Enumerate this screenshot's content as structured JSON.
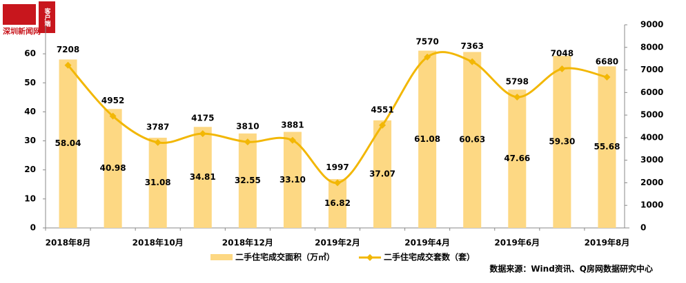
{
  "chart_data": {
    "type": "bar-line",
    "logo_text": "深圳新闻网",
    "logo_badge": "客户端",
    "source": "数据来源：Wind资讯、Q房网数据研究中心",
    "categories": [
      "2018年8月",
      null,
      "2018年10月",
      null,
      "2018年12月",
      null,
      "2019年2月",
      null,
      "2019年4月",
      null,
      "2019年6月",
      null,
      "2019年8月"
    ],
    "series": [
      {
        "name": "二手住宅成交面积（万㎡）",
        "type": "bar",
        "color": "#FDD883",
        "values": [
          58.04,
          40.98,
          31.08,
          34.81,
          32.55,
          33.1,
          16.82,
          37.07,
          61.08,
          60.63,
          47.66,
          59.3,
          55.68
        ],
        "value_labels": [
          "58.04",
          "40.98",
          "31.08",
          "34.81",
          "32.55",
          "33.10",
          "16.82",
          "37.07",
          "61.08",
          "60.63",
          "47.66",
          "59.30",
          "55.68"
        ]
      },
      {
        "name": "二手住宅成交套数（套）",
        "type": "line",
        "axis": "y2",
        "color": "#F2B705",
        "values": [
          7208,
          4952,
          3787,
          4175,
          3810,
          3881,
          1997,
          4551,
          7570,
          7363,
          5798,
          7048,
          6680
        ]
      }
    ],
    "ylim": [
      0,
      70
    ],
    "yticks": [
      0,
      10,
      20,
      30,
      40,
      50,
      60
    ],
    "y2lim": [
      0,
      9000
    ],
    "y2ticks": [
      0,
      1000,
      2000,
      3000,
      4000,
      5000,
      6000,
      7000,
      8000,
      9000
    ]
  }
}
